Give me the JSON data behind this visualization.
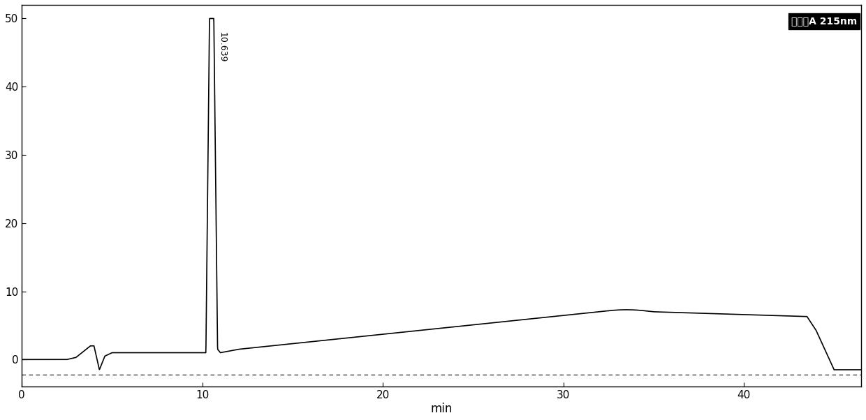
{
  "title": "",
  "xlabel": "min",
  "ylabel": "",
  "xlim": [
    0,
    46.5
  ],
  "ylim": [
    -4,
    52
  ],
  "yticks": [
    0,
    10,
    20,
    30,
    40,
    50
  ],
  "xticks": [
    0,
    10,
    20,
    30,
    40
  ],
  "detector_label": "检测器A 215nm",
  "peak_label": "10.639",
  "background_color": "#ffffff",
  "line_color": "#000000",
  "dashed_line_y": -2.2,
  "figure_width": 12.4,
  "figure_height": 6.02,
  "dpi": 100
}
